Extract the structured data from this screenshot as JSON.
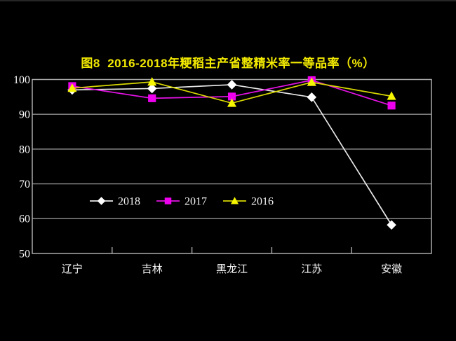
{
  "page": {
    "background": "#000000",
    "top_edge_color": "#262626"
  },
  "chart_data": {
    "type": "line",
    "title": "图8  2016-2018年粳稻主产省整精米率一等品率（%）",
    "title_color": "#f2e900",
    "categories": [
      "辽宁",
      "吉林",
      "黑龙江",
      "江苏",
      "安徽"
    ],
    "yticks": [
      100,
      90,
      80,
      70,
      60,
      50
    ],
    "ylim": [
      50,
      100
    ],
    "ylabel": "",
    "xlabel": "",
    "grid": true,
    "grid_color": "#8f8f8f",
    "border_color": "#aaaaaa",
    "axis_text_color": "#f5f5f5",
    "legend_position": "inside-lower-left",
    "series": [
      {
        "name": "2018",
        "color": "#e9e9e9",
        "marker_color": "#ffffff",
        "marker": "diamond",
        "values": [
          97.0,
          97.4,
          98.5,
          94.9,
          58.2
        ]
      },
      {
        "name": "2017",
        "color": "#e312e3",
        "marker_color": "#ee00ee",
        "marker": "square",
        "values": [
          98.1,
          94.6,
          95.1,
          99.8,
          92.5
        ]
      },
      {
        "name": "2016",
        "color": "#d8d800",
        "marker_color": "#f6f600",
        "marker": "triangle",
        "values": [
          97.5,
          99.3,
          93.2,
          99.2,
          95.2
        ]
      }
    ]
  }
}
